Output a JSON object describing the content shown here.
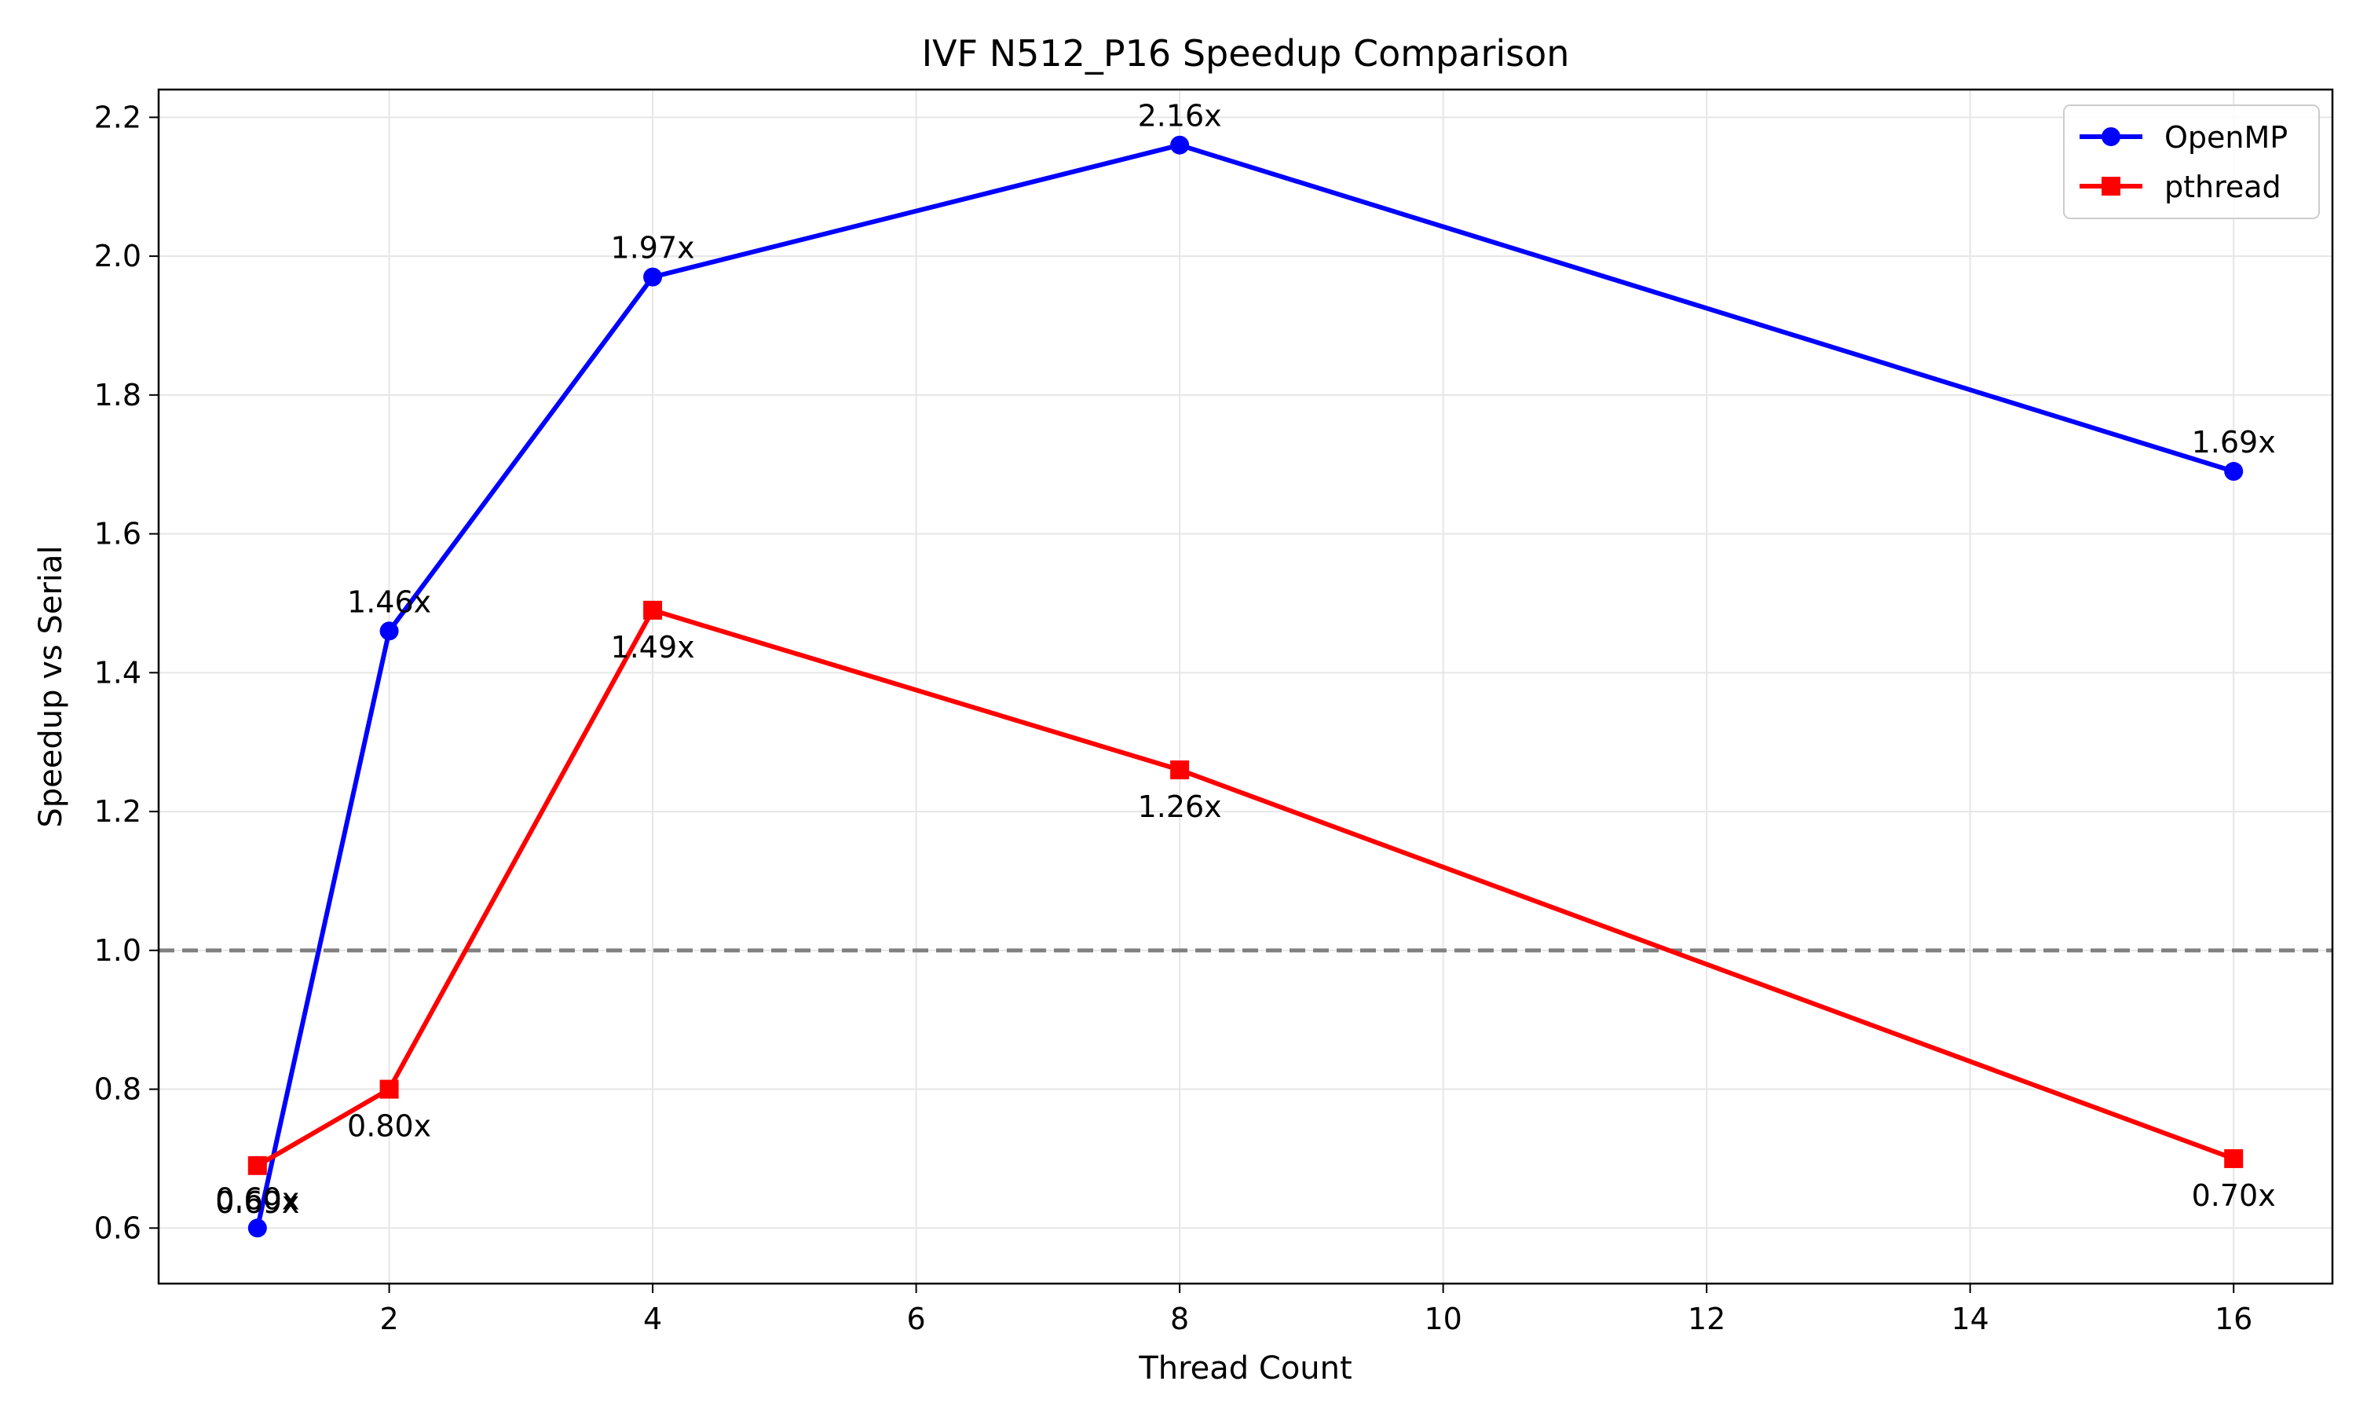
{
  "chart_data": {
    "type": "line",
    "title": "IVF N512_P16 Speedup Comparison",
    "xlabel": "Thread Count",
    "ylabel": "Speedup vs Serial",
    "xlim": [
      0.25,
      16.75
    ],
    "ylim": [
      0.52,
      2.24
    ],
    "xticks": [
      2,
      4,
      6,
      8,
      10,
      12,
      14,
      16
    ],
    "yticks": [
      0.6,
      0.8,
      1.0,
      1.2,
      1.4,
      1.6,
      1.8,
      2.0,
      2.2
    ],
    "grid": true,
    "legend": "top-right",
    "reference_line": {
      "y": 1.0,
      "style": "dashed",
      "color": "#808080"
    },
    "series": [
      {
        "name": "OpenMP",
        "color": "#0000ff",
        "marker": "circle",
        "label_position": "above",
        "x": [
          1,
          2,
          4,
          8,
          16
        ],
        "values": [
          0.6,
          1.46,
          1.97,
          2.16,
          1.69
        ],
        "labels": [
          "0.60x",
          "1.46x",
          "1.97x",
          "2.16x",
          "1.69x"
        ]
      },
      {
        "name": "pthread",
        "color": "#ff0000",
        "marker": "square",
        "label_position": "below",
        "x": [
          1,
          2,
          4,
          8,
          16
        ],
        "values": [
          0.69,
          0.8,
          1.49,
          1.26,
          0.7
        ],
        "labels": [
          "0.69x",
          "0.80x",
          "1.49x",
          "1.26x",
          "0.70x"
        ]
      }
    ]
  }
}
